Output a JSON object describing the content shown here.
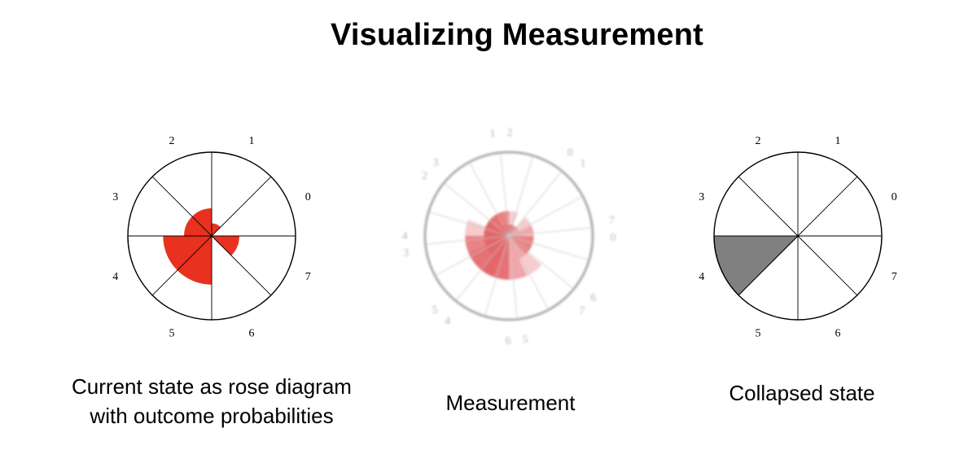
{
  "title": "Visualizing Measurement",
  "sector_labels": [
    "0",
    "1",
    "2",
    "3",
    "4",
    "5",
    "6",
    "7"
  ],
  "panels": {
    "current": {
      "caption_line1": "Current state as rose diagram",
      "caption_line2": "with outcome probabilities",
      "fill_color": "#e8321f",
      "relative_radii": [
        0,
        0.15,
        0.33,
        0.33,
        0.58,
        0.58,
        0,
        0.33
      ]
    },
    "measurement": {
      "caption": "Measurement",
      "fill_color": "#e0484a",
      "outline_color": "#9a9a9a"
    },
    "collapsed": {
      "caption": "Collapsed state",
      "fill_color": "#808080",
      "selected_sector": "4"
    }
  },
  "colors": {
    "outline": "#000000",
    "text": "#000000",
    "background": "#ffffff"
  }
}
